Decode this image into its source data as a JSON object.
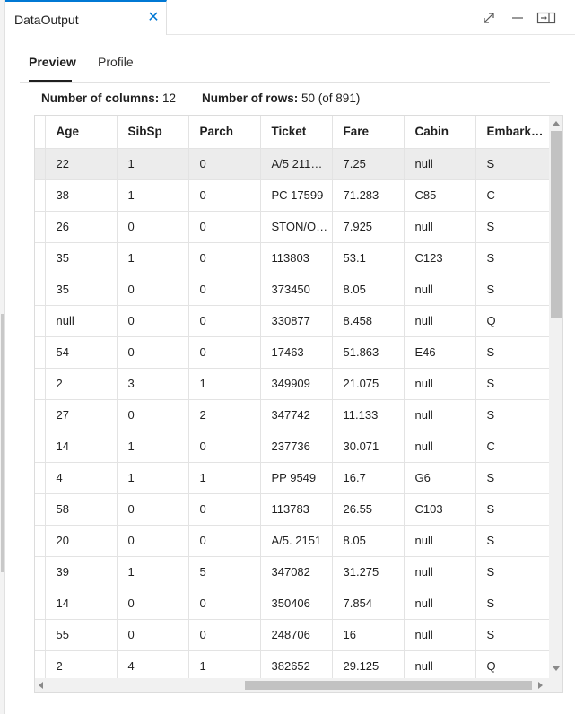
{
  "window": {
    "tab_title": "DataOutput",
    "close_glyph": "✕",
    "controls": [
      "expand-icon",
      "minimize-icon",
      "panel-toggle-icon"
    ]
  },
  "section_tabs": [
    {
      "label": "Preview",
      "active": true
    },
    {
      "label": "Profile",
      "active": false
    }
  ],
  "summary": {
    "columns_label": "Number of columns:",
    "columns_value": "12",
    "rows_label": "Number of rows:",
    "rows_value": "50 (of 891)"
  },
  "table": {
    "columns": [
      "Age",
      "SibSp",
      "Parch",
      "Ticket",
      "Fare",
      "Cabin",
      "Embark…"
    ],
    "selected_row": 0,
    "rows": [
      [
        "22",
        "1",
        "0",
        "A/5 211…",
        "7.25",
        "null",
        "S"
      ],
      [
        "38",
        "1",
        "0",
        "PC 17599",
        "71.283",
        "C85",
        "C"
      ],
      [
        "26",
        "0",
        "0",
        "STON/O…",
        "7.925",
        "null",
        "S"
      ],
      [
        "35",
        "1",
        "0",
        "113803",
        "53.1",
        "C123",
        "S"
      ],
      [
        "35",
        "0",
        "0",
        "373450",
        "8.05",
        "null",
        "S"
      ],
      [
        "null",
        "0",
        "0",
        "330877",
        "8.458",
        "null",
        "Q"
      ],
      [
        "54",
        "0",
        "0",
        "17463",
        "51.863",
        "E46",
        "S"
      ],
      [
        "2",
        "3",
        "1",
        "349909",
        "21.075",
        "null",
        "S"
      ],
      [
        "27",
        "0",
        "2",
        "347742",
        "11.133",
        "null",
        "S"
      ],
      [
        "14",
        "1",
        "0",
        "237736",
        "30.071",
        "null",
        "C"
      ],
      [
        "4",
        "1",
        "1",
        "PP 9549",
        "16.7",
        "G6",
        "S"
      ],
      [
        "58",
        "0",
        "0",
        "113783",
        "26.55",
        "C103",
        "S"
      ],
      [
        "20",
        "0",
        "0",
        "A/5. 2151",
        "8.05",
        "null",
        "S"
      ],
      [
        "39",
        "1",
        "5",
        "347082",
        "31.275",
        "null",
        "S"
      ],
      [
        "14",
        "0",
        "0",
        "350406",
        "7.854",
        "null",
        "S"
      ],
      [
        "55",
        "0",
        "0",
        "248706",
        "16",
        "null",
        "S"
      ],
      [
        "2",
        "4",
        "1",
        "382652",
        "29.125",
        "null",
        "Q"
      ]
    ]
  }
}
